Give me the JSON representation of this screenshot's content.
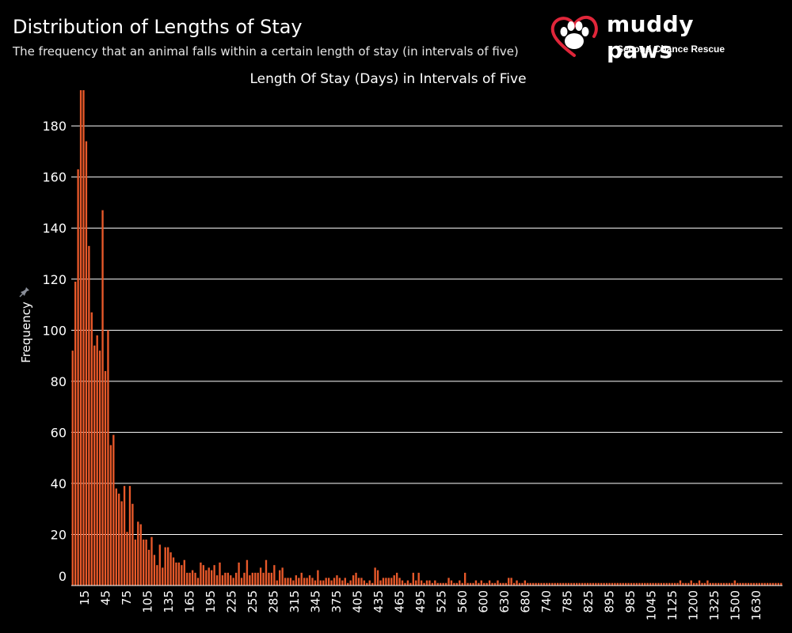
{
  "header": {
    "title": "Distribution of Lengths of Stay",
    "subtitle": "The frequency that an animal falls within a certain length of stay (in intervals of five)"
  },
  "logo": {
    "name": "muddy paws",
    "tagline": "Second Chance Rescue"
  },
  "colors": {
    "background": "#000000",
    "bar": "#E8592A",
    "grid": "#ffffff",
    "logo_heart": "#e0263a"
  },
  "chart_data": {
    "type": "bar",
    "title": "Length Of Stay (Days) in Intervals of Five",
    "xlabel": "Length Of Stay (Days) in Intervals of Five",
    "ylabel": "Frequency",
    "ylim": [
      0,
      194
    ],
    "yticks": [
      0,
      20,
      40,
      60,
      80,
      100,
      120,
      140,
      160,
      180
    ],
    "grid": "horizontal",
    "x_tick_labels": [
      "15",
      "45",
      "75",
      "105",
      "135",
      "165",
      "195",
      "225",
      "255",
      "285",
      "315",
      "345",
      "375",
      "405",
      "435",
      "465",
      "495",
      "525",
      "560",
      "600",
      "630",
      "680",
      "740",
      "785",
      "825",
      "895",
      "985",
      "1045",
      "1125",
      "1200",
      "1325",
      "1500",
      "1630"
    ],
    "bar_count": 261,
    "categories": [
      "0",
      "5",
      "10",
      "15",
      "20",
      "25",
      "30",
      "35",
      "40",
      "45",
      "50",
      "55",
      "60",
      "65",
      "70",
      "75",
      "80",
      "85",
      "90",
      "95",
      "100",
      "105",
      "110",
      "115",
      "120",
      "125",
      "130",
      "135",
      "140",
      "145",
      "150",
      "155",
      "160",
      "165",
      "170",
      "175",
      "180",
      "185",
      "190",
      "195",
      "200",
      "205",
      "210",
      "215",
      "220",
      "225",
      "230",
      "235",
      "240",
      "245",
      "250",
      "255",
      "260",
      "265",
      "270",
      "275",
      "280",
      "285",
      "290",
      "295",
      "300",
      "305",
      "310",
      "315",
      "320",
      "325",
      "330",
      "335",
      "340",
      "345",
      "350",
      "355",
      "360",
      "365",
      "370",
      "375",
      "380",
      "385",
      "390",
      "395",
      "400",
      "405",
      "410",
      "415",
      "420",
      "425",
      "430",
      "435",
      "440",
      "445",
      "450",
      "455",
      "460",
      "465",
      "470",
      "475",
      "480",
      "485",
      "490",
      "495",
      "500",
      "505",
      "510",
      "515",
      "520",
      "525",
      "530",
      "535",
      "540",
      "545",
      "550",
      "560",
      "565",
      "570",
      "575",
      "580",
      "585",
      "590",
      "595",
      "600",
      "605",
      "610",
      "615",
      "620",
      "625",
      "630",
      "635",
      "640",
      "645",
      "650",
      "660",
      "665",
      "670",
      "675",
      "680",
      "690",
      "695",
      "700",
      "710",
      "715",
      "720",
      "725",
      "730",
      "735",
      "740",
      "745",
      "750",
      "760",
      "765",
      "770",
      "775",
      "780",
      "785",
      "790",
      "800",
      "805",
      "810",
      "815",
      "820",
      "825",
      "830",
      "835",
      "840",
      "850",
      "855",
      "860",
      "865",
      "870",
      "880",
      "885",
      "890",
      "895",
      "905",
      "910",
      "920",
      "925",
      "935",
      "945",
      "950",
      "960",
      "965",
      "975",
      "980",
      "985",
      "990",
      "1000",
      "1005",
      "1015",
      "1020",
      "1030",
      "1035",
      "1045",
      "1050",
      "1060",
      "1070",
      "1075",
      "1085",
      "1090",
      "1100",
      "1110",
      "1115",
      "1125",
      "1130",
      "1140",
      "1145",
      "1160",
      "1165",
      "1175",
      "1185",
      "1190",
      "1200",
      "1210",
      "1220",
      "1230",
      "1240",
      "1250",
      "1260",
      "1270",
      "1285",
      "1295",
      "1305",
      "1315",
      "1325",
      "1340",
      "1355",
      "1365",
      "1380",
      "1390",
      "1405",
      "1420",
      "1430",
      "1445",
      "1460",
      "1475",
      "1490",
      "1500",
      "1515",
      "1530",
      "1545",
      "1560",
      "1570",
      "1585",
      "1600",
      "1615",
      "1630",
      "1645",
      "1660",
      "1675",
      "1690",
      "1705",
      "1720",
      "1735",
      "1750",
      "1765",
      "1780",
      "1795",
      "1810",
      "1825",
      "1840",
      "1855",
      "1870"
    ],
    "values": [
      92,
      119,
      163,
      194,
      194,
      174,
      133,
      107,
      94,
      98,
      92,
      147,
      84,
      100,
      55,
      59,
      38,
      36,
      33,
      39,
      21,
      39,
      32,
      18,
      25,
      24,
      18,
      18,
      14,
      19,
      12,
      8,
      16,
      7,
      15,
      15,
      13,
      11,
      9,
      9,
      8,
      10,
      5,
      5,
      6,
      5,
      3,
      9,
      8,
      6,
      7,
      6,
      8,
      4,
      9,
      4,
      5,
      5,
      4,
      3,
      5,
      9,
      3,
      5,
      10,
      4,
      5,
      5,
      5,
      7,
      5,
      10,
      5,
      5,
      8,
      2,
      6,
      7,
      3,
      3,
      3,
      2,
      4,
      3,
      5,
      3,
      3,
      4,
      3,
      2,
      6,
      2,
      2,
      3,
      3,
      2,
      3,
      4,
      3,
      2,
      3,
      1,
      2,
      4,
      5,
      3,
      3,
      2,
      1,
      2,
      1,
      7,
      6,
      2,
      3,
      3,
      3,
      3,
      4,
      5,
      3,
      2,
      1,
      2,
      1,
      5,
      2,
      5,
      2,
      1,
      2,
      2,
      1,
      2,
      1,
      1,
      1,
      1,
      3,
      2,
      1,
      1,
      2,
      1,
      5,
      1,
      1,
      1,
      2,
      1,
      2,
      1,
      1,
      2,
      1,
      1,
      2,
      1,
      1,
      1,
      3,
      3,
      1,
      2,
      1,
      1,
      2,
      1,
      1,
      1,
      1,
      1,
      1,
      1,
      1,
      1,
      1,
      1,
      1,
      1,
      1,
      1,
      1,
      1,
      1,
      1,
      1,
      1,
      1,
      1,
      1,
      1,
      1,
      1,
      1,
      1,
      1,
      1,
      1,
      1,
      1,
      1,
      1,
      1,
      1,
      1,
      1,
      1,
      1,
      1,
      1,
      1,
      1,
      1,
      1,
      1,
      1,
      1,
      1,
      1,
      1,
      1,
      1,
      2,
      1,
      1,
      1,
      2,
      1,
      1,
      2,
      1,
      1,
      2,
      1,
      1,
      1,
      1,
      1,
      1,
      1,
      1,
      1,
      2,
      1,
      1,
      1,
      1,
      1,
      1,
      1,
      1,
      1,
      1,
      1,
      1,
      1,
      1,
      1,
      1,
      1
    ]
  }
}
